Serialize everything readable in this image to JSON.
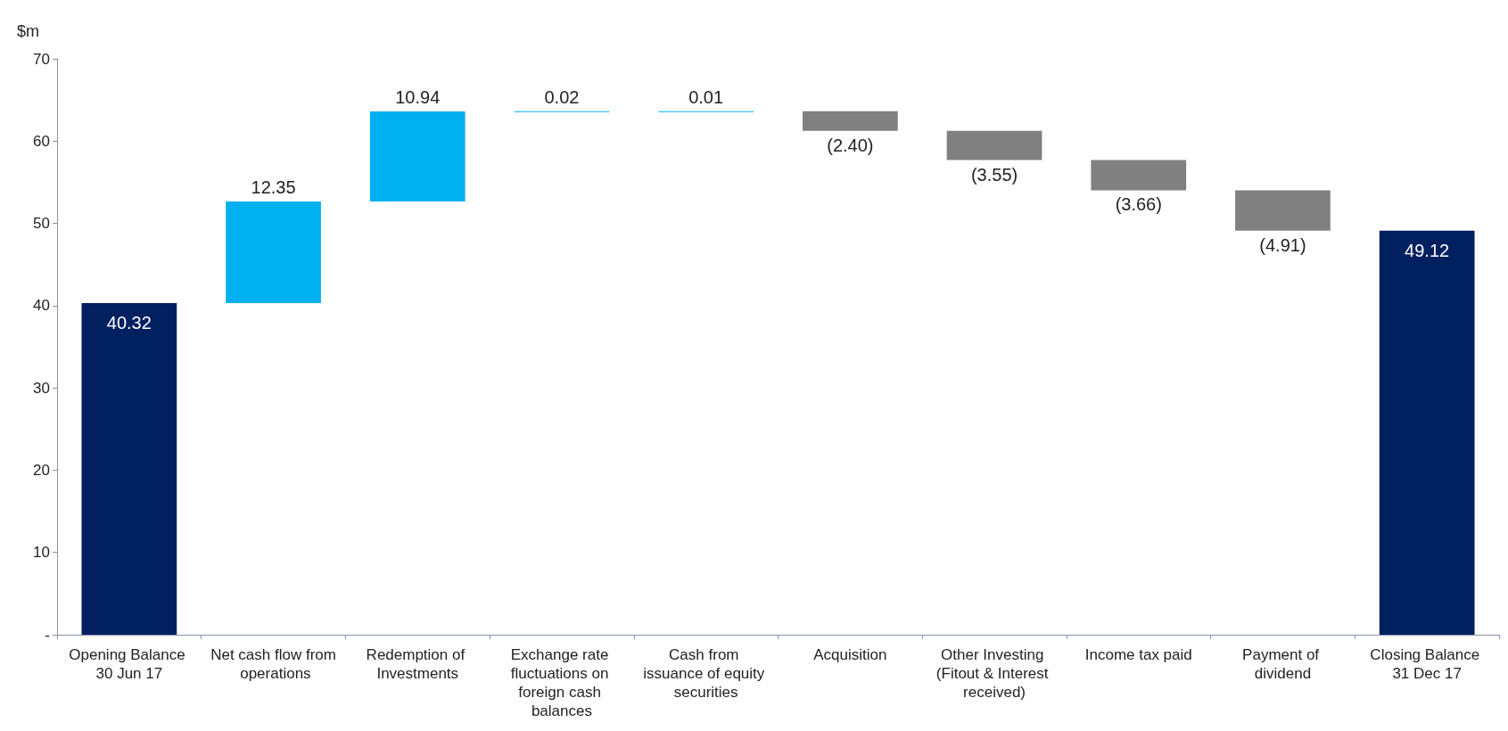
{
  "chart_data": {
    "type": "bar",
    "ylabel": "$m",
    "categories": [
      "Opening Balance 30 Jun 17",
      "Net cash flow from operations",
      "Redemption of Investments",
      "Exchange rate fluctuations on foreign cash balances",
      "Cash from issuance of equity securities",
      "Acquisition",
      "Other Investing (Fitout & Interest received)",
      "Income tax paid",
      "Payment of dividend",
      "Closing Balance 31 Dec 17"
    ],
    "values": [
      40.32,
      12.35,
      10.94,
      0.02,
      0.01,
      -2.4,
      -3.55,
      -3.66,
      -4.91,
      49.12
    ],
    "base": [
      0,
      40.32,
      52.67,
      63.61,
      63.63,
      63.64,
      61.24,
      57.69,
      54.03,
      0
    ],
    "colors": [
      "#002060",
      "#00b0f0",
      "#00b0f0",
      "#00b0f0",
      "#00b0f0",
      "#808080",
      "#808080",
      "#808080",
      "#808080",
      "#002060"
    ],
    "value_labels": [
      "40.32",
      "12.35",
      "10.94",
      "0.02",
      "0.01",
      "(2.40)",
      "(3.55)",
      "(3.66)",
      "(4.91)",
      "49.12"
    ],
    "ylim": [
      0,
      70
    ],
    "yticks": [
      {
        "value": 0,
        "label": "-"
      },
      10,
      20,
      30,
      40,
      50,
      60,
      70
    ],
    "grid": false
  }
}
